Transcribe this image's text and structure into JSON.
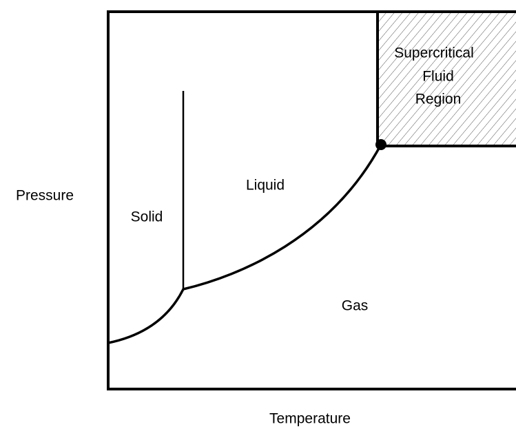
{
  "axes": {
    "y_label": "Pressure",
    "x_label": "Temperature"
  },
  "regions": {
    "solid": "Solid",
    "liquid": "Liquid",
    "gas": "Gas",
    "supercritical": [
      "Supercritical",
      "Fluid",
      "Region"
    ]
  }
}
